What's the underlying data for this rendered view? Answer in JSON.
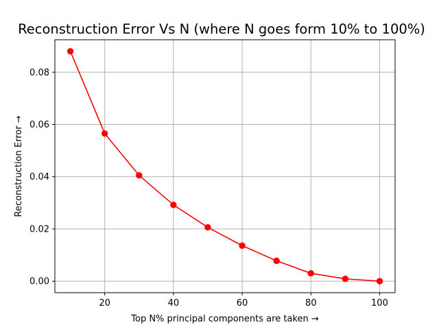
{
  "chart_data": {
    "type": "line",
    "title": "Reconstruction Error Vs N (where N goes form 10% to 100%)",
    "xlabel": "Top N% principal components are taken →",
    "ylabel": "Reconstruction Error →",
    "x": [
      10,
      20,
      30,
      40,
      50,
      60,
      70,
      80,
      90,
      100
    ],
    "series": [
      {
        "values": [
          0.088,
          0.0565,
          0.0405,
          0.0292,
          0.0206,
          0.0136,
          0.0078,
          0.003,
          0.0009,
          0.0
        ],
        "color": "#ff0000",
        "marker": "circle"
      }
    ],
    "xlim": [
      5.5,
      104.5
    ],
    "ylim": [
      -0.0044,
      0.0924
    ],
    "xticks": [
      20,
      40,
      60,
      80,
      100
    ],
    "xtick_labels": [
      "20",
      "40",
      "60",
      "80",
      "100"
    ],
    "yticks": [
      0.0,
      0.02,
      0.04,
      0.06,
      0.08
    ],
    "ytick_labels": [
      "0.00",
      "0.02",
      "0.04",
      "0.06",
      "0.08"
    ],
    "grid": true
  }
}
